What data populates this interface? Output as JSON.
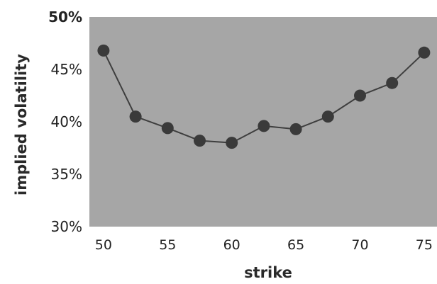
{
  "chart_data": {
    "type": "line",
    "title": "",
    "xlabel": "strike",
    "ylabel": "implied volatility",
    "x": [
      50,
      52.5,
      55,
      57.5,
      60,
      62.5,
      65,
      67.5,
      70,
      72.5,
      75
    ],
    "series": [
      {
        "values": [
          46.8,
          40.5,
          39.4,
          38.2,
          38.0,
          39.6,
          39.3,
          40.5,
          42.5,
          43.7,
          46.6
        ]
      }
    ],
    "xlim": [
      48.9,
      76
    ],
    "ylim": [
      30,
      50
    ],
    "x_ticks": [
      {
        "value": 50,
        "label": "50"
      },
      {
        "value": 55,
        "label": "55"
      },
      {
        "value": 60,
        "label": "60"
      },
      {
        "value": 65,
        "label": "65"
      },
      {
        "value": 70,
        "label": "70"
      },
      {
        "value": 75,
        "label": "75"
      }
    ],
    "y_ticks": [
      {
        "value": 30,
        "label": "30%"
      },
      {
        "value": 35,
        "label": "35%"
      },
      {
        "value": 40,
        "label": "40%"
      },
      {
        "value": 45,
        "label": "45%"
      },
      {
        "value": 50,
        "label": "50%"
      }
    ],
    "grid": false,
    "legend": "none",
    "colors": {
      "plot_background": "#a6a6a6",
      "line": "#3e3e3e",
      "marker": "#3a3a3a"
    }
  }
}
